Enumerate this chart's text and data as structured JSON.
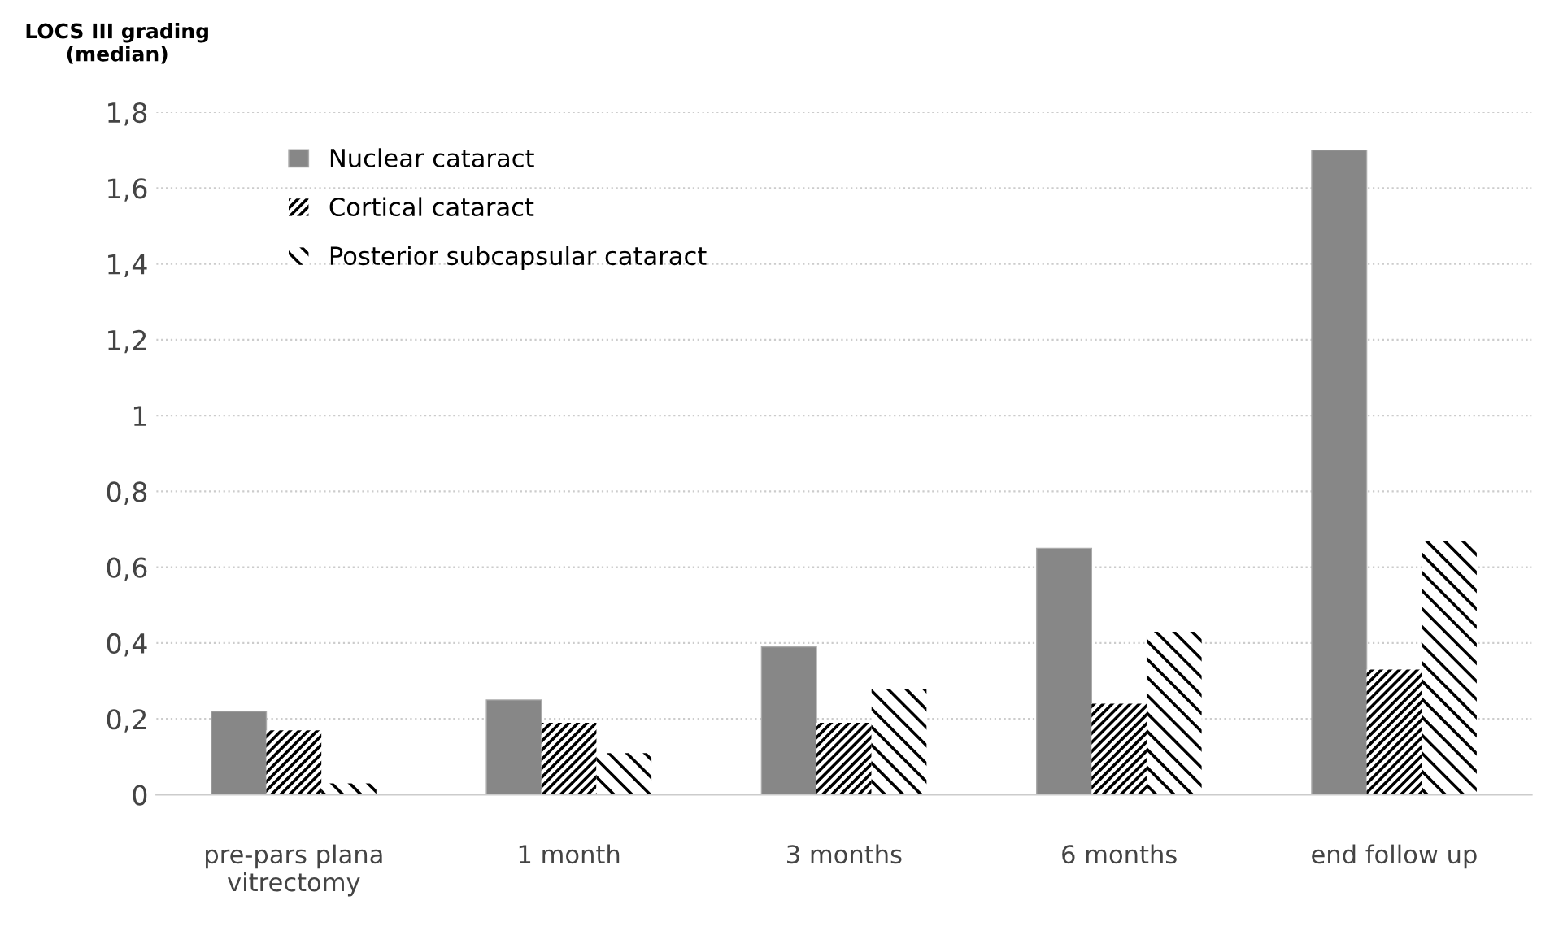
{
  "chart_data": {
    "type": "bar",
    "ylabel": "LOCS III grading\n(median)",
    "categories": [
      "pre-pars plana\nvitrectomy",
      "1 month",
      "3 months",
      "6 months",
      "end follow up"
    ],
    "series": [
      {
        "name": "Nuclear cataract",
        "color": "#878787",
        "values": [
          0.22,
          0.25,
          0.39,
          0.65,
          1.7
        ]
      },
      {
        "name": "Cortical cataract",
        "color": "#000000",
        "values": [
          0.17,
          0.19,
          0.19,
          0.24,
          0.33
        ]
      },
      {
        "name": "Posterior subcapsular cataract",
        "color": "#000000",
        "values": [
          0.03,
          0.11,
          0.28,
          0.43,
          0.67
        ]
      }
    ],
    "ylim": [
      0,
      1.8
    ],
    "yticks": [
      0,
      {
        "value": 0.2,
        "label": "0,2"
      },
      {
        "value": 0.4,
        "label": "0,4"
      },
      {
        "value": 0.6,
        "label": "0,6"
      },
      {
        "value": 0.8,
        "label": "0,8"
      },
      1,
      {
        "value": 1.2,
        "label": "1,2"
      },
      {
        "value": 1.4,
        "label": "1,4"
      },
      {
        "value": 1.6,
        "label": "1,6"
      },
      {
        "value": 1.8,
        "label": "1,8"
      }
    ],
    "grid": "y",
    "legend": "top left"
  }
}
